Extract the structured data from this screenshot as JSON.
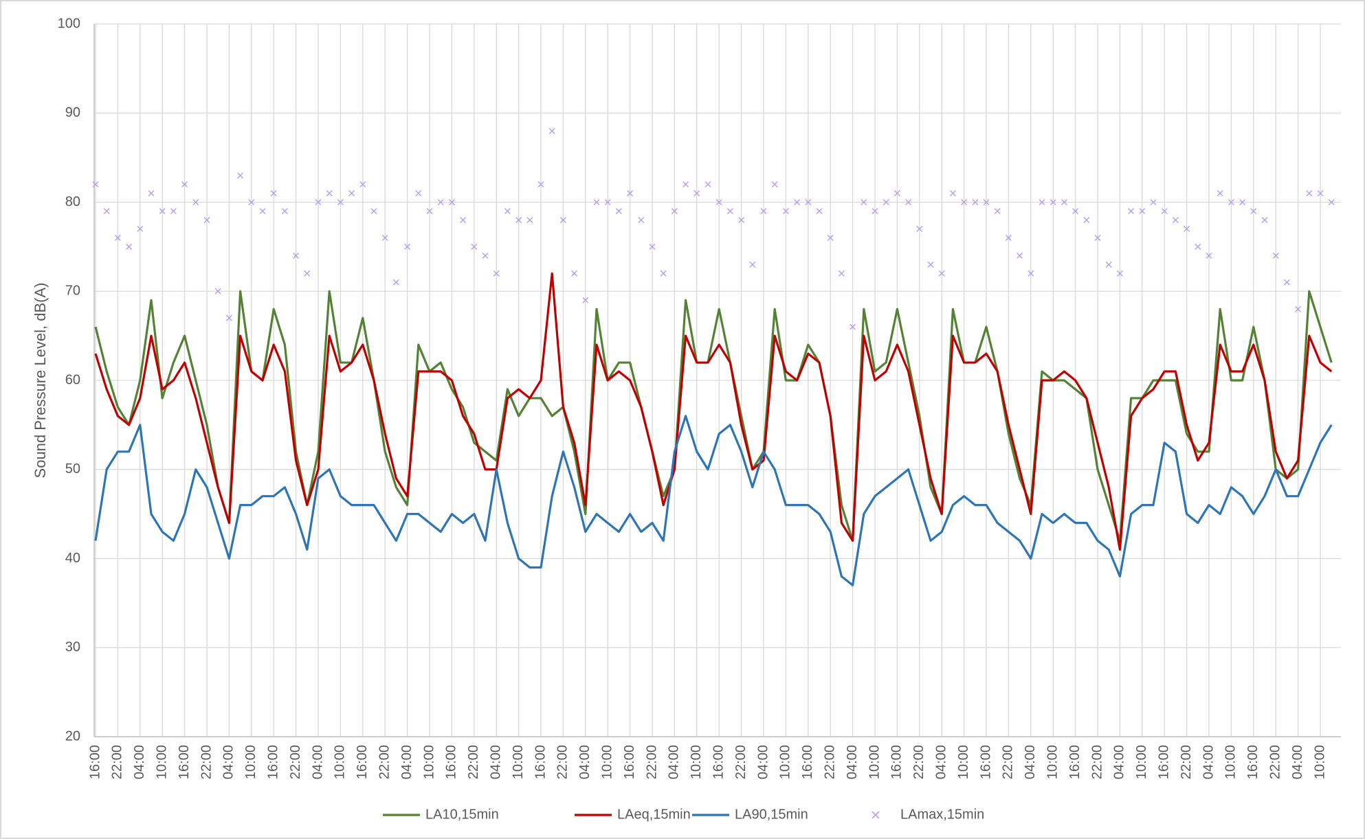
{
  "chart_data": {
    "type": "line",
    "y_label": "Sound Pressure Level, dB(A)",
    "ylim": [
      20,
      100
    ],
    "yticks": [
      20,
      30,
      40,
      50,
      60,
      70,
      80,
      90,
      100
    ],
    "grid": true,
    "legend": "bottom",
    "categories": [
      "16:00",
      null,
      "22:00",
      null,
      "04:00",
      null,
      "10:00",
      null,
      "16:00",
      null,
      "22:00",
      null,
      "04:00",
      null,
      "10:00",
      null,
      "16:00",
      null,
      "22:00",
      null,
      "04:00",
      null,
      "10:00",
      null,
      "16:00",
      null,
      "22:00",
      null,
      "04:00",
      null,
      "10:00",
      null,
      "16:00",
      null,
      "22:00",
      null,
      "04:00",
      null,
      "10:00",
      null,
      "16:00",
      null,
      "22:00",
      null,
      "04:00",
      null,
      "10:00",
      null,
      "16:00",
      null,
      "22:00",
      null,
      "04:00",
      null,
      "10:00",
      null,
      "16:00",
      null,
      "22:00",
      null,
      "04:00",
      null,
      "10:00",
      null,
      "16:00",
      null,
      "22:00",
      null,
      "04:00",
      null,
      "10:00",
      null,
      "16:00",
      null,
      "22:00",
      null,
      "04:00",
      null,
      "10:00",
      null,
      "16:00",
      null,
      "22:00",
      null,
      "04:00",
      null,
      "10:00",
      null,
      "16:00",
      null,
      "22:00",
      null,
      "04:00",
      null,
      "10:00",
      null,
      "16:00",
      null,
      "22:00",
      null,
      "04:00",
      null,
      "10:00",
      null,
      "16:00",
      null,
      "22:00",
      null,
      "04:00",
      null,
      "10:00",
      null
    ],
    "series": [
      {
        "name": "LA10,15min",
        "color": "#548235",
        "mode": "lines",
        "values": [
          66,
          61,
          57,
          55,
          60,
          69,
          58,
          62,
          65,
          60,
          55,
          48,
          44,
          70,
          61,
          60,
          68,
          64,
          52,
          46,
          52,
          70,
          62,
          62,
          67,
          60,
          52,
          48,
          46,
          64,
          61,
          62,
          59,
          57,
          53,
          52,
          51,
          59,
          56,
          58,
          58,
          56,
          57,
          52,
          45,
          68,
          60,
          62,
          62,
          57,
          52,
          47,
          50,
          69,
          62,
          62,
          68,
          62,
          56,
          50,
          52,
          68,
          60,
          60,
          64,
          62,
          56,
          46,
          42,
          68,
          61,
          62,
          68,
          62,
          56,
          48,
          45,
          68,
          62,
          62,
          66,
          61,
          54,
          49,
          46,
          61,
          60,
          60,
          59,
          58,
          50,
          46,
          42,
          58,
          58,
          60,
          60,
          60,
          54,
          52,
          52,
          68,
          60,
          60,
          66,
          60,
          50,
          49,
          50,
          70,
          66,
          62
        ]
      },
      {
        "name": "LAeq,15min",
        "color": "#c00000",
        "mode": "lines",
        "values": [
          63,
          59,
          56,
          55,
          58,
          65,
          59,
          60,
          62,
          58,
          53,
          48,
          44,
          65,
          61,
          60,
          64,
          61,
          51,
          46,
          50,
          65,
          61,
          62,
          64,
          60,
          54,
          49,
          47,
          61,
          61,
          61,
          60,
          56,
          54,
          50,
          50,
          58,
          59,
          58,
          60,
          72,
          57,
          53,
          46,
          64,
          60,
          61,
          60,
          57,
          52,
          46,
          50,
          65,
          62,
          62,
          64,
          62,
          55,
          50,
          51,
          65,
          61,
          60,
          63,
          62,
          56,
          44,
          42,
          65,
          60,
          61,
          64,
          61,
          55,
          49,
          45,
          65,
          62,
          62,
          63,
          61,
          55,
          50,
          45,
          60,
          60,
          61,
          60,
          58,
          53,
          48,
          41,
          56,
          58,
          59,
          61,
          61,
          55,
          51,
          53,
          64,
          61,
          61,
          64,
          60,
          52,
          49,
          51,
          65,
          62,
          61
        ]
      },
      {
        "name": "LA90,15min",
        "color": "#2e75b6",
        "mode": "lines",
        "values": [
          42,
          50,
          52,
          52,
          55,
          45,
          43,
          42,
          45,
          50,
          48,
          44,
          40,
          46,
          46,
          47,
          47,
          48,
          45,
          41,
          49,
          50,
          47,
          46,
          46,
          46,
          44,
          42,
          45,
          45,
          44,
          43,
          45,
          44,
          45,
          42,
          50,
          44,
          40,
          39,
          39,
          47,
          52,
          48,
          43,
          45,
          44,
          43,
          45,
          43,
          44,
          42,
          52,
          56,
          52,
          50,
          54,
          55,
          52,
          48,
          52,
          50,
          46,
          46,
          46,
          45,
          43,
          38,
          37,
          45,
          47,
          48,
          49,
          50,
          46,
          42,
          43,
          46,
          47,
          46,
          46,
          44,
          43,
          42,
          40,
          45,
          44,
          45,
          44,
          44,
          42,
          41,
          38,
          45,
          46,
          46,
          53,
          52,
          45,
          44,
          46,
          45,
          48,
          47,
          45,
          47,
          50,
          47,
          47,
          50,
          53,
          55
        ]
      },
      {
        "name": "LAmax,15min",
        "color": "#b79cf0",
        "mode": "markers",
        "values": [
          82,
          79,
          76,
          75,
          77,
          81,
          79,
          79,
          82,
          80,
          78,
          70,
          67,
          83,
          80,
          79,
          81,
          79,
          74,
          72,
          80,
          81,
          80,
          81,
          82,
          79,
          76,
          71,
          75,
          81,
          79,
          80,
          80,
          78,
          75,
          74,
          72,
          79,
          78,
          78,
          82,
          88,
          78,
          72,
          69,
          80,
          80,
          79,
          81,
          78,
          75,
          72,
          79,
          82,
          81,
          82,
          80,
          79,
          78,
          73,
          79,
          82,
          79,
          80,
          80,
          79,
          76,
          72,
          66,
          80,
          79,
          80,
          81,
          80,
          77,
          73,
          72,
          81,
          80,
          80,
          80,
          79,
          76,
          74,
          72,
          80,
          80,
          80,
          79,
          78,
          76,
          73,
          72,
          79,
          79,
          80,
          79,
          78,
          77,
          75,
          74,
          81,
          80,
          80,
          79,
          78,
          74,
          71,
          68,
          81,
          81,
          80
        ]
      }
    ]
  }
}
